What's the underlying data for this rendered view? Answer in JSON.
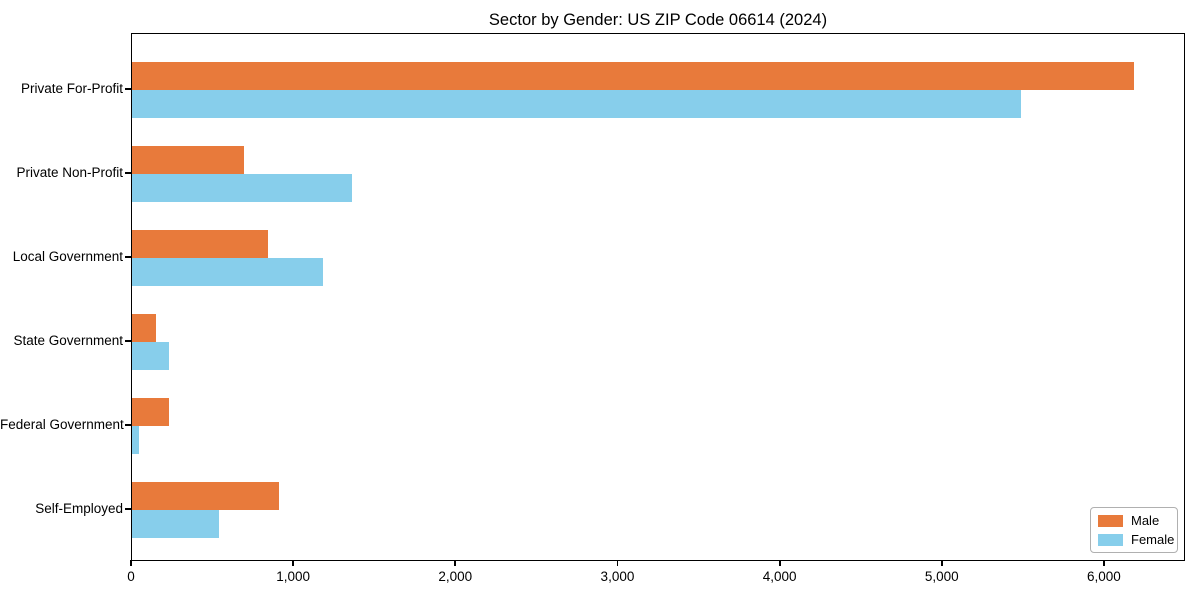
{
  "title": "Sector by Gender: US ZIP Code 06614 (2024)",
  "chart_data": {
    "type": "bar",
    "orientation": "horizontal",
    "title": "Sector by Gender: US ZIP Code 06614 (2024)",
    "categories": [
      "Private For-Profit",
      "Private Non-Profit",
      "Local Government",
      "State Government",
      "Federal Government",
      "Self-Employed"
    ],
    "series": [
      {
        "name": "Male",
        "color": "#e87a3b",
        "values": [
          6190,
          690,
          840,
          150,
          230,
          910
        ]
      },
      {
        "name": "Female",
        "color": "#87ceeb",
        "values": [
          5490,
          1360,
          1180,
          230,
          45,
          540
        ]
      }
    ],
    "xlim": [
      0,
      6500
    ],
    "xticks": [
      0,
      1000,
      2000,
      3000,
      4000,
      5000,
      6000
    ],
    "xtick_labels": [
      "0",
      "1,000",
      "2,000",
      "3,000",
      "4,000",
      "5,000",
      "6,000"
    ],
    "grid": false,
    "legend_position": "lower right",
    "xlabel": "",
    "ylabel": ""
  }
}
